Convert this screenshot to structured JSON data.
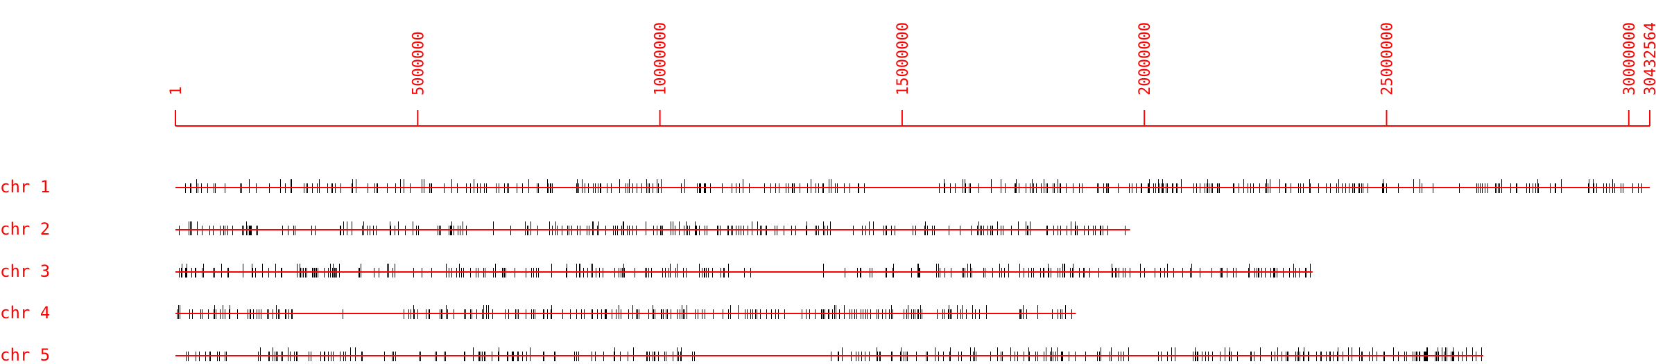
{
  "chart_data": {
    "type": "chromosome-map",
    "scale": {
      "ticks": [
        1,
        5000000,
        10000000,
        15000000,
        20000000,
        25000000,
        30000000
      ],
      "tick_labels": [
        "1",
        "5000000",
        "10000000",
        "15000000",
        "20000000",
        "25000000",
        "30000000"
      ],
      "max": 30432564,
      "max_label": "30432564"
    },
    "chromosomes": [
      {
        "label": "chr 1",
        "length": 30432564
      },
      {
        "label": "chr 2",
        "length": 19705359
      },
      {
        "label": "chr 3",
        "length": 23470805
      },
      {
        "label": "chr 4",
        "length": 18585042
      },
      {
        "label": "chr 5",
        "length": 26992728
      }
    ],
    "gaps": {
      "chr 1": [
        [
          14300000,
          15600000
        ]
      ],
      "chr 2": [
        [
          1800000,
          2300000
        ],
        [
          3000000,
          3300000
        ],
        [
          6200000,
          6500000
        ]
      ],
      "chr 3": [
        [
          12200000,
          14000000
        ]
      ],
      "chr 4": [
        [
          2500000,
          4600000
        ]
      ],
      "chr 5": [
        [
          10800000,
          13500000
        ]
      ]
    },
    "density": {
      "chr 1": 340,
      "chr 2": 230,
      "chr 3": 270,
      "chr 4": 240,
      "chr 5": 310
    },
    "colors": {
      "axis": "#ff0000",
      "marker": "#000000"
    }
  }
}
